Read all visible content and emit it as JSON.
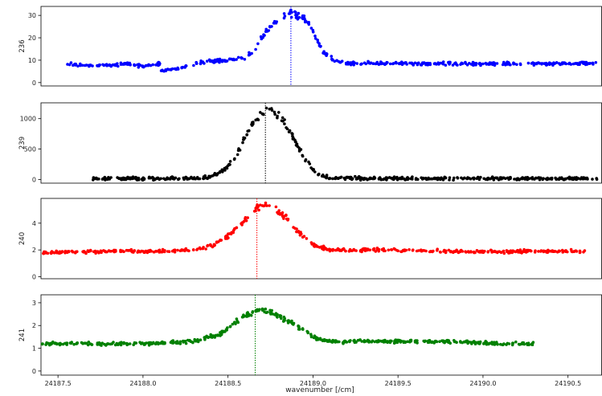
{
  "chart_data": {
    "type": "scatter",
    "xlabel": "wavenumber [/cm]",
    "xlim": [
      24187.4,
      24190.7
    ],
    "xticks": [
      24187.5,
      24188.0,
      24188.5,
      24189.0,
      24189.5,
      24190.0,
      24190.5
    ],
    "xticklabels": [
      "24187.5",
      "24188.0",
      "24188.5",
      "24189.0",
      "24189.5",
      "24190.0",
      "24190.5"
    ],
    "grid": false,
    "panels": [
      {
        "ylabel": "236",
        "color": "#0000ff",
        "ylim": [
          -1.5,
          34
        ],
        "yticks": [
          0,
          10,
          20,
          30
        ],
        "yticklabels": [
          "0",
          "10",
          "20",
          "30"
        ],
        "peak_line_x": 24188.87,
        "x_range": [
          24187.55,
          24190.68
        ],
        "series_points": [
          [
            24187.55,
            8.5
          ],
          [
            24187.7,
            7.5
          ],
          [
            24187.85,
            8
          ],
          [
            24187.9,
            8.5
          ],
          [
            24188.0,
            7.2
          ],
          [
            24188.1,
            8.5
          ],
          [
            24187.85,
            4.8
          ],
          [
            24188.0,
            5
          ],
          [
            24188.2,
            5.8
          ],
          [
            24188.3,
            8.5
          ],
          [
            24188.4,
            9.5
          ],
          [
            24188.5,
            10
          ],
          [
            24188.6,
            11
          ],
          [
            24188.66,
            15
          ],
          [
            24188.7,
            20
          ],
          [
            24188.75,
            25
          ],
          [
            24188.8,
            29
          ],
          [
            24188.86,
            31
          ],
          [
            24188.92,
            30
          ],
          [
            24188.98,
            26
          ],
          [
            24189.02,
            20
          ],
          [
            24189.06,
            14
          ],
          [
            24189.12,
            10
          ],
          [
            24189.2,
            8.8
          ],
          [
            24189.5,
            8.5
          ],
          [
            24189.8,
            8.5
          ],
          [
            24190.1,
            8.4
          ],
          [
            24190.4,
            8.5
          ],
          [
            24190.68,
            8.5
          ]
        ]
      },
      {
        "ylabel": "239",
        "color": "#000000",
        "ylim": [
          -60,
          1260
        ],
        "yticks": [
          0,
          500,
          1000
        ],
        "yticklabels": [
          "0",
          "500",
          "1000"
        ],
        "peak_line_x": 24188.72,
        "x_range": [
          24187.7,
          24190.68
        ],
        "series_points": [
          [
            24187.7,
            15
          ],
          [
            24188.0,
            15
          ],
          [
            24188.3,
            20
          ],
          [
            24188.4,
            40
          ],
          [
            24188.48,
            150
          ],
          [
            24188.55,
            400
          ],
          [
            24188.6,
            700
          ],
          [
            24188.65,
            950
          ],
          [
            24188.7,
            1080
          ],
          [
            24188.75,
            1120
          ],
          [
            24188.8,
            1050
          ],
          [
            24188.85,
            850
          ],
          [
            24188.9,
            600
          ],
          [
            24188.95,
            350
          ],
          [
            24189.0,
            150
          ],
          [
            24189.05,
            60
          ],
          [
            24189.1,
            25
          ],
          [
            24189.3,
            15
          ],
          [
            24189.8,
            15
          ],
          [
            24190.3,
            15
          ],
          [
            24190.68,
            15
          ]
        ]
      },
      {
        "ylabel": "240",
        "color": "#ff0000",
        "ylim": [
          -0.15,
          5.85
        ],
        "yticks": [
          0,
          2,
          4
        ],
        "yticklabels": [
          "0",
          "2",
          "4"
        ],
        "peak_line_x": 24188.67,
        "x_range": [
          24187.4,
          24190.6
        ],
        "series_points": [
          [
            24187.4,
            1.8
          ],
          [
            24187.8,
            1.9
          ],
          [
            24188.1,
            1.9
          ],
          [
            24188.3,
            2.0
          ],
          [
            24188.4,
            2.3
          ],
          [
            24188.5,
            3.0
          ],
          [
            24188.6,
            4.2
          ],
          [
            24188.65,
            5.0
          ],
          [
            24188.7,
            5.3
          ],
          [
            24188.78,
            5.0
          ],
          [
            24188.85,
            4.3
          ],
          [
            24188.92,
            3.2
          ],
          [
            24189.0,
            2.4
          ],
          [
            24189.1,
            2.0
          ],
          [
            24189.4,
            2.0
          ],
          [
            24189.8,
            1.9
          ],
          [
            24190.2,
            1.9
          ],
          [
            24190.6,
            1.9
          ]
        ]
      },
      {
        "ylabel": "241",
        "color": "#008000",
        "ylim": [
          -0.18,
          3.35
        ],
        "yticks": [
          0,
          1,
          2,
          3
        ],
        "yticklabels": [
          "0",
          "1",
          "2",
          "3"
        ],
        "peak_line_x": 24188.66,
        "x_range": [
          24187.4,
          24190.3
        ],
        "series_points": [
          [
            24187.4,
            1.2
          ],
          [
            24187.8,
            1.2
          ],
          [
            24188.0,
            1.2
          ],
          [
            24188.3,
            1.3
          ],
          [
            24188.45,
            1.6
          ],
          [
            24188.55,
            2.2
          ],
          [
            24188.62,
            2.5
          ],
          [
            24188.68,
            2.7
          ],
          [
            24188.75,
            2.6
          ],
          [
            24188.85,
            2.2
          ],
          [
            24188.95,
            1.8
          ],
          [
            24189.0,
            1.5
          ],
          [
            24189.1,
            1.3
          ],
          [
            24189.5,
            1.3
          ],
          [
            24189.8,
            1.3
          ],
          [
            24190.1,
            1.2
          ],
          [
            24190.3,
            1.2
          ]
        ]
      }
    ]
  }
}
